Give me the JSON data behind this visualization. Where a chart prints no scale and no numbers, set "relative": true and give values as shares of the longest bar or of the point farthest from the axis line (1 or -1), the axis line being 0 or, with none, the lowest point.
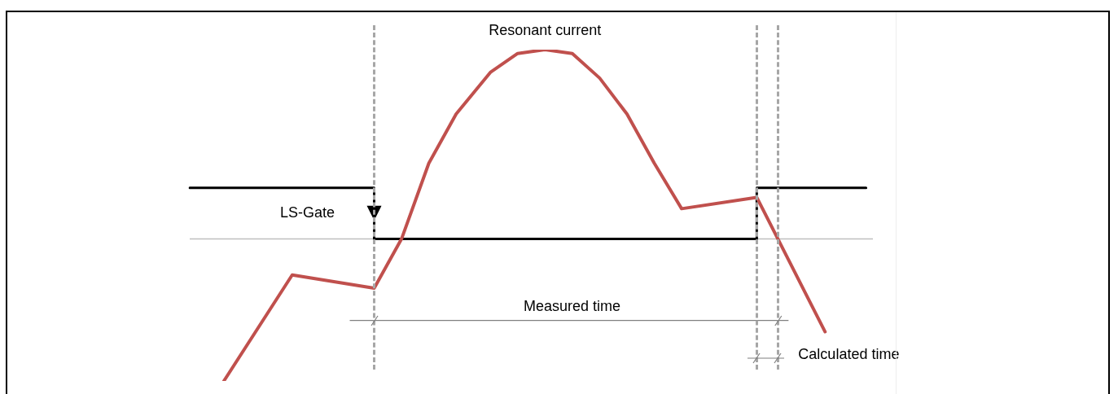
{
  "chart_data": {
    "type": "line",
    "relative": true,
    "categories": [
      null,
      null,
      null,
      null,
      null,
      null,
      null,
      null,
      null,
      null,
      null,
      null,
      null,
      null,
      null,
      null,
      null,
      null,
      null,
      null,
      null,
      null,
      null,
      null,
      null,
      null,
      null,
      null,
      null,
      null,
      null,
      null,
      null,
      null,
      null,
      null,
      null,
      null,
      null,
      null,
      null,
      null,
      null,
      null,
      null,
      null,
      null,
      null,
      null,
      null,
      null,
      null,
      null,
      null,
      null,
      null,
      null,
      null,
      null,
      null,
      null,
      null,
      null,
      null,
      null,
      null,
      null,
      null,
      null,
      null,
      null,
      null,
      null,
      null,
      null,
      null,
      null,
      null,
      null,
      null,
      null,
      null,
      null,
      null,
      null,
      null,
      null,
      null,
      null,
      null,
      null,
      null,
      null,
      null,
      null,
      null,
      null,
      null,
      null,
      null,
      null
    ],
    "series": [
      {
        "name": "Resonant current",
        "type": "line",
        "color": "#c0504d",
        "values": [
          null,
          null,
          null,
          null,
          null,
          -0.75,
          null,
          null,
          null,
          null,
          null,
          null,
          null,
          null,
          null,
          -0.19,
          null,
          null,
          null,
          null,
          null,
          null,
          null,
          null,
          null,
          null,
          null,
          -0.26,
          null,
          null,
          null,
          0,
          null,
          null,
          null,
          0.4,
          null,
          null,
          null,
          0.66,
          null,
          null,
          null,
          null,
          0.88,
          null,
          null,
          null,
          0.98,
          null,
          null,
          null,
          1,
          null,
          null,
          null,
          0.98,
          null,
          null,
          null,
          0.85,
          null,
          null,
          null,
          0.66,
          null,
          null,
          null,
          0.4,
          null,
          null,
          null,
          0.16,
          null,
          null,
          null,
          null,
          null,
          null,
          null,
          null,
          null,
          null,
          0.22,
          null,
          null,
          null,
          null,
          null,
          null,
          null,
          null,
          null,
          -0.49,
          null,
          null,
          null,
          null,
          null,
          null,
          null
        ]
      },
      {
        "name": "LS-Gate",
        "type": "step",
        "color": "#000000",
        "values": [
          0.27,
          null,
          null,
          null,
          null,
          null,
          null,
          null,
          null,
          null,
          null,
          null,
          null,
          null,
          null,
          null,
          null,
          null,
          null,
          null,
          null,
          null,
          null,
          null,
          null,
          null,
          null,
          0,
          null,
          null,
          null,
          null,
          null,
          null,
          null,
          null,
          null,
          null,
          null,
          null,
          null,
          null,
          null,
          null,
          null,
          null,
          null,
          null,
          null,
          null,
          null,
          null,
          null,
          null,
          null,
          null,
          null,
          null,
          null,
          null,
          null,
          null,
          null,
          null,
          null,
          null,
          null,
          null,
          null,
          null,
          null,
          null,
          null,
          null,
          null,
          null,
          null,
          null,
          null,
          null,
          null,
          null,
          null,
          0.27,
          null,
          null,
          null,
          null,
          null,
          null,
          null,
          null,
          null,
          null,
          null,
          null,
          null,
          null,
          null,
          0.27,
          null
        ]
      }
    ],
    "ref_lines": [
      {
        "axis": "y",
        "value": 0,
        "color": "#bfbfbf",
        "line_style": "solid"
      },
      {
        "axis": "y",
        "value": -0.43,
        "label": "Measured time",
        "color": "#7f7f7f",
        "line_style": "solid"
      }
    ],
    "annotations": [
      "Calculated time"
    ]
  }
}
